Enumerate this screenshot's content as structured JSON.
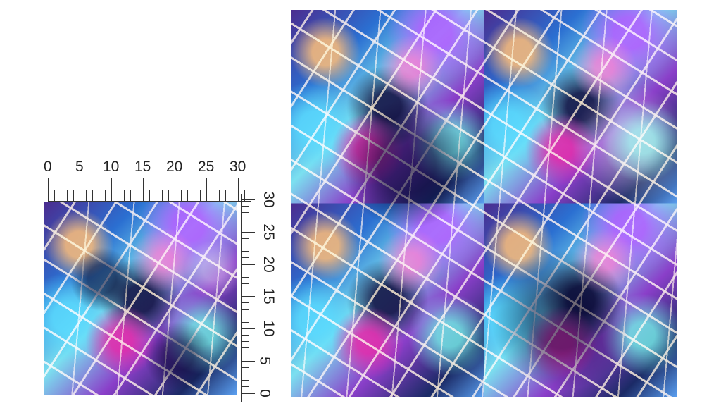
{
  "ruler_top": {
    "labels": [
      "0",
      "5",
      "10",
      "15",
      "20",
      "25",
      "30"
    ]
  },
  "ruler_right": {
    "labels": [
      "30",
      "25",
      "20",
      "15",
      "10",
      "5",
      "0"
    ]
  }
}
